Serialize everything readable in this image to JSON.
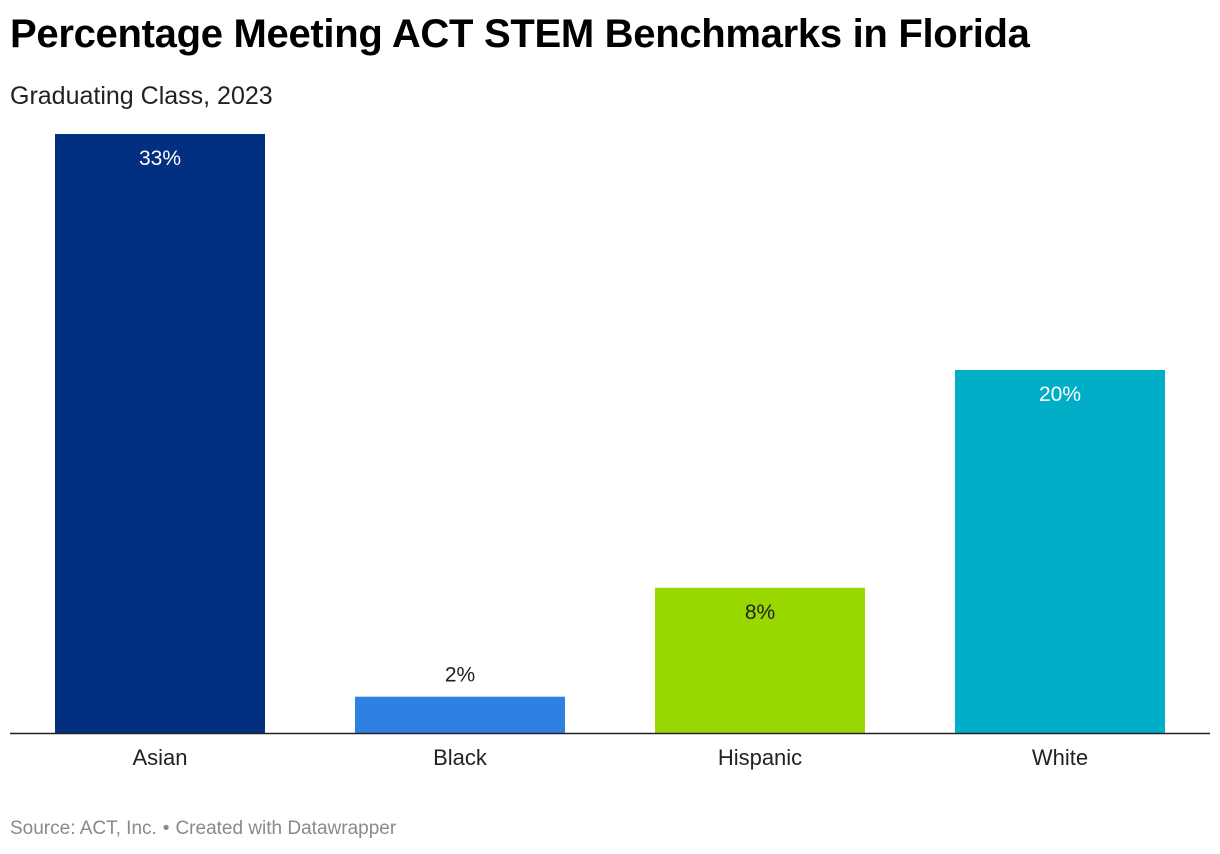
{
  "title": "Percentage Meeting ACT STEM Benchmarks in Florida",
  "subtitle": "Graduating Class, 2023",
  "footer": {
    "source": "Source: ACT, Inc.",
    "separator": "•",
    "credit": "Created with Datawrapper"
  },
  "chart_data": {
    "type": "bar",
    "title": "Percentage Meeting ACT STEM Benchmarks in Florida",
    "subtitle": "Graduating Class, 2023",
    "categories": [
      "Asian",
      "Black",
      "Hispanic",
      "White"
    ],
    "values": [
      33,
      2,
      8,
      20
    ],
    "value_labels": [
      "33%",
      "2%",
      "8%",
      "20%"
    ],
    "colors": [
      "#032f80",
      "#2f80e3",
      "#99d700",
      "#00aec8"
    ],
    "label_colors": [
      "#ffffff",
      "#222222",
      "#222222",
      "#ffffff"
    ],
    "ylim": [
      0,
      33
    ],
    "grid": false,
    "xlabel": "",
    "ylabel": ""
  }
}
